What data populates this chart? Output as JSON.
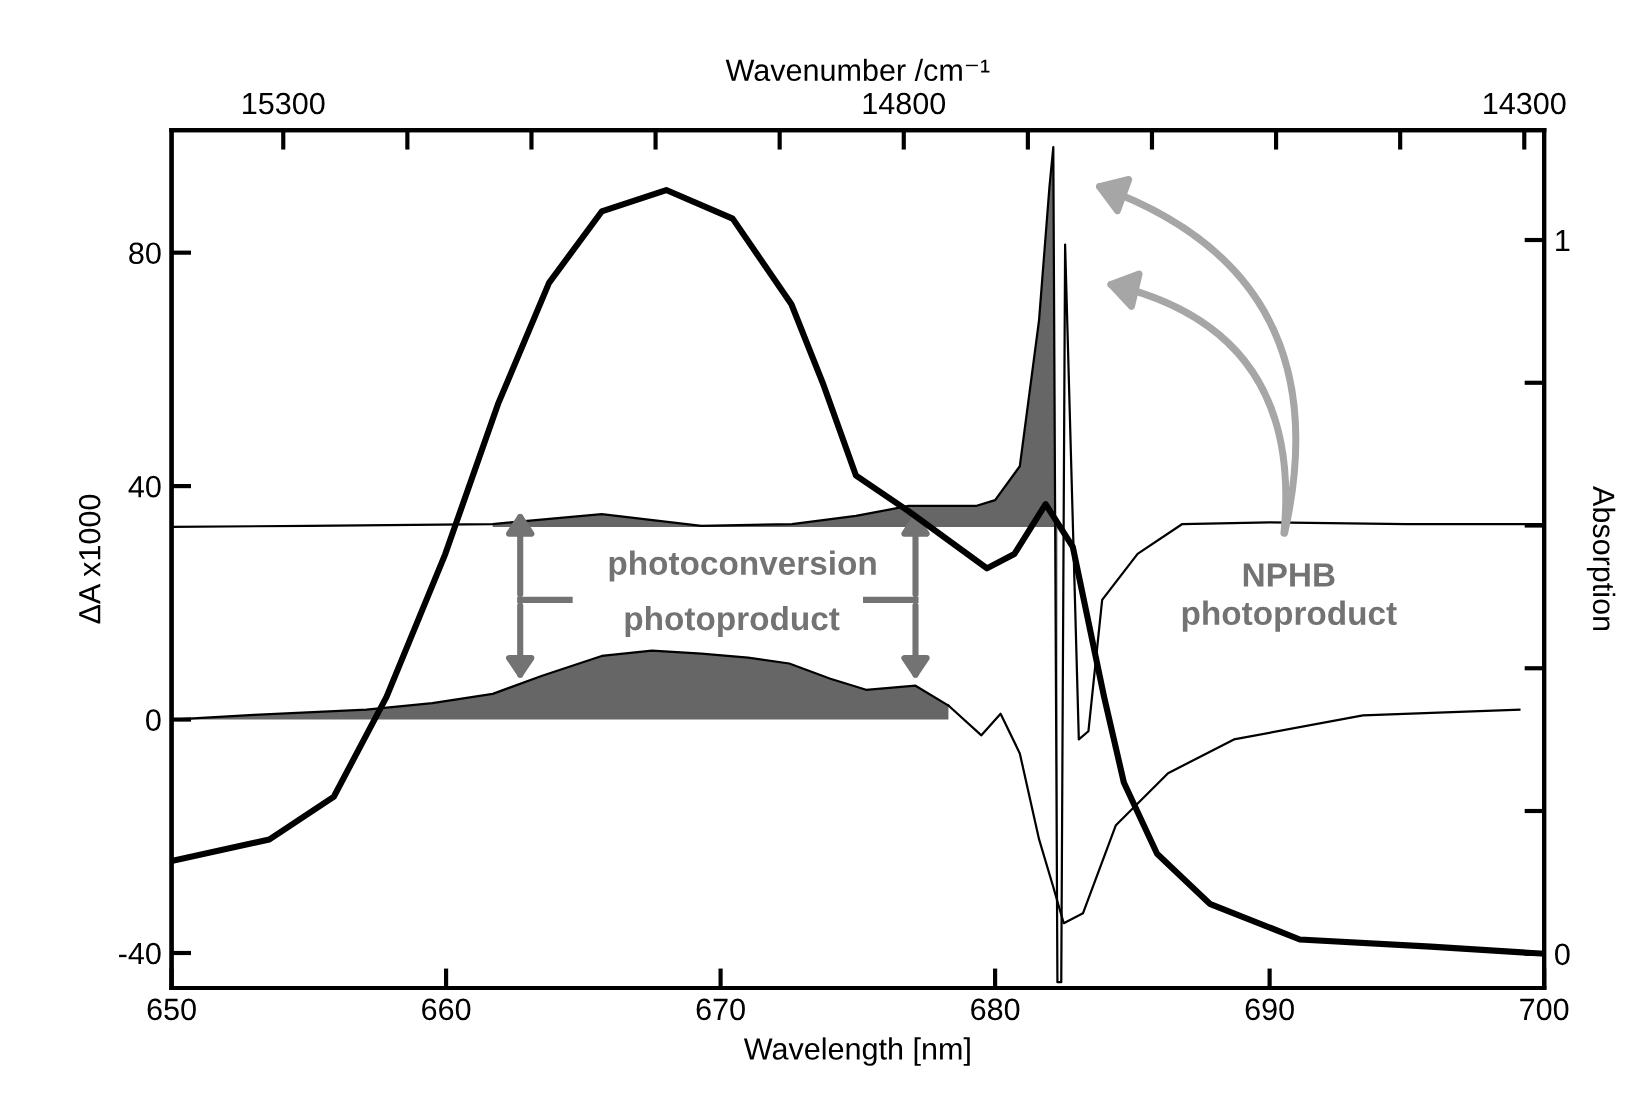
{
  "chart_data": {
    "type": "line",
    "xlabel": "Wavelength [nm]",
    "x2label": "Wavenumber /cm⁻¹",
    "ylabel": "ΔA x1000",
    "y2label": "Absorption",
    "xlim": [
      650,
      700
    ],
    "xticks": [
      650,
      660,
      670,
      680,
      690,
      700
    ],
    "ylim": [
      -46,
      101
    ],
    "yticks": [
      -40,
      0,
      40,
      80
    ],
    "y2lim": [
      -0.048,
      1.154
    ],
    "y2ticks": [
      {
        "value": 0,
        "label": "0"
      },
      {
        "value": 0.2,
        "label": null
      },
      {
        "value": 0.4,
        "label": null
      },
      {
        "value": 0.6,
        "label": null
      },
      {
        "value": 0.8,
        "label": null
      },
      {
        "value": 1,
        "label": "1"
      }
    ],
    "x2lim": [
      15390,
      14284
    ],
    "x2ticks": [
      {
        "value": 15300,
        "label": "15300"
      },
      {
        "value": 15200,
        "label": null
      },
      {
        "value": 15100,
        "label": null
      },
      {
        "value": 15000,
        "label": null
      },
      {
        "value": 14900,
        "label": null
      },
      {
        "value": 14800,
        "label": "14800"
      },
      {
        "value": 14700,
        "label": null
      },
      {
        "value": 14600,
        "label": null
      },
      {
        "value": 14500,
        "label": null
      },
      {
        "value": 14400,
        "label": null
      },
      {
        "value": 14300,
        "label": "14300"
      }
    ],
    "grid": false,
    "legend": false,
    "marker": "none",
    "line_style": "solid",
    "series": [
      {
        "color": "#000000",
        "axis": "y2",
        "x": [
          650,
          653.56,
          655.91,
          657.83,
          659.97,
          661.89,
          663.75,
          665.67,
          668.02,
          670.44,
          672.58,
          673.72,
          674.93,
          676.85,
          679.7,
          680.7,
          681.84,
          682.83,
          683.97,
          684.69,
          685.9,
          687.82,
          691.1,
          695.87,
          700
        ],
        "values": [
          0.13,
          0.16,
          0.22,
          0.36,
          0.56,
          0.77,
          0.94,
          1.04,
          1.07,
          1.03,
          0.91,
          0.8,
          0.67,
          0.62,
          0.54,
          0.56,
          0.63,
          0.57,
          0.36,
          0.24,
          0.14,
          0.07,
          0.02,
          0.01,
          0.0
        ]
      },
      {
        "type": "area",
        "color": "#666666",
        "x": [
          650,
          653,
          657.1,
          659.5,
          661.7,
          663.5,
          665.67,
          667.5,
          669.3,
          671,
          672.5,
          674,
          675.3,
          677.1,
          678.3
        ],
        "values": [
          0,
          0.8,
          1.7,
          2.8,
          4.4,
          7.5,
          10.9,
          11.8,
          11.3,
          10.6,
          9.6,
          7,
          5.1,
          5.8,
          2.4
        ]
      },
      {
        "type": "line",
        "color": "#000000",
        "x": [
          678.3,
          679.5,
          680.2,
          680.9,
          681.6,
          682.1,
          682.5,
          683.2,
          684.4,
          686.3,
          688.7,
          693.4,
          699.1
        ],
        "values": [
          2.4,
          -2.7,
          1.0,
          -5.8,
          -20.5,
          -28.4,
          -34.9,
          -33.2,
          -18.1,
          -9.2,
          -3.4,
          0.7,
          1.7
        ]
      },
      {
        "color": "#000000",
        "x": [
          650,
          655,
          661.7,
          665.67,
          669.3,
          672.6,
          674.93,
          676.85,
          679.3,
          680.0,
          680.9,
          681.6,
          681.98,
          682.12,
          682.27,
          682.41,
          682.55,
          683.05,
          683.4,
          683.9,
          685.19,
          686.82,
          690,
          695,
          700
        ],
        "values": [
          33,
          33.2,
          33.5,
          35.2,
          33.2,
          33.5,
          34.9,
          36.6,
          36.6,
          37.6,
          43.4,
          68.4,
          91.3,
          98.1,
          -45,
          -45,
          81.4,
          -3.4,
          -2.0,
          20.5,
          28.4,
          33.5,
          33.8,
          33.5,
          33.5
        ],
        "lower": [
          null,
          null,
          33,
          33,
          33,
          33,
          33,
          33,
          33,
          33,
          33,
          33,
          33,
          33,
          33,
          null,
          null,
          null,
          null,
          null,
          null,
          null,
          null,
          null,
          null
        ],
        "upper": [
          null,
          null,
          33.5,
          35.2,
          33.2,
          33.5,
          34.9,
          36.6,
          36.6,
          37.6,
          43.4,
          68.4,
          91.3,
          98.1,
          -45,
          null,
          null,
          null,
          null,
          null,
          null,
          null,
          null,
          null,
          null
        ]
      }
    ],
    "annotations": [
      {
        "text": "photoconversion",
        "x": 677.1,
        "y": 36.6
      },
      {
        "text": "photoproduct",
        "x": 677.1,
        "y": 5.8
      },
      "NPHB\nphotoproduct"
    ]
  }
}
